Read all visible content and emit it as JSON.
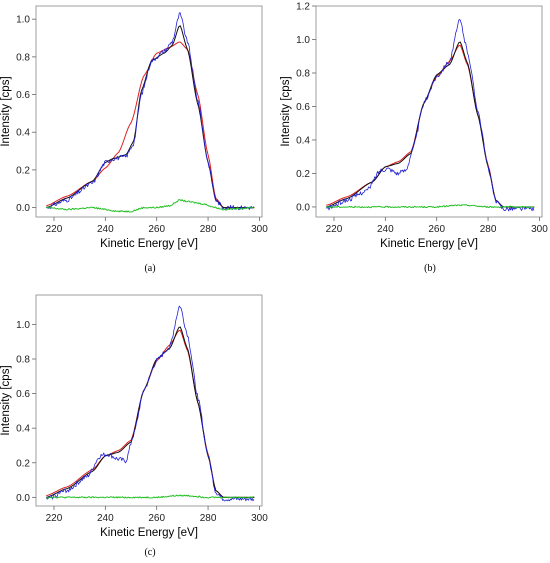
{
  "chart_data": [
    {
      "panel": "a",
      "type": "line",
      "caption": "(a)",
      "xlabel": "Kinetic Energy [eV]",
      "ylabel": "Intensity [cps]",
      "xlim": [
        213,
        301
      ],
      "ylim": [
        -0.05,
        1.07
      ],
      "xticks": [
        220,
        240,
        260,
        280,
        300
      ],
      "yticks": [
        0.0,
        0.2,
        0.4,
        0.6,
        0.8,
        1.0
      ],
      "grid": false,
      "series": [
        {
          "color": "#e02020",
          "noise": 0,
          "points": [
            [
              217,
              0.01
            ],
            [
              225,
              0.06
            ],
            [
              235,
              0.14
            ],
            [
              240,
              0.21
            ],
            [
              245,
              0.29
            ],
            [
              250,
              0.45
            ],
            [
              255,
              0.7
            ],
            [
              260,
              0.82
            ],
            [
              265,
              0.85
            ],
            [
              269,
              0.88
            ],
            [
              272,
              0.84
            ],
            [
              276,
              0.6
            ],
            [
              280,
              0.28
            ],
            [
              283,
              0.05
            ],
            [
              286,
              0.0
            ],
            [
              298,
              0.0
            ]
          ]
        },
        {
          "color": "#101010",
          "noise": 0,
          "points": [
            [
              217,
              0.0
            ],
            [
              225,
              0.05
            ],
            [
              235,
              0.14
            ],
            [
              240,
              0.24
            ],
            [
              243,
              0.26
            ],
            [
              248,
              0.28
            ],
            [
              251,
              0.35
            ],
            [
              254,
              0.62
            ],
            [
              258,
              0.78
            ],
            [
              263,
              0.82
            ],
            [
              266,
              0.86
            ],
            [
              269,
              0.97
            ],
            [
              272,
              0.84
            ],
            [
              276,
              0.55
            ],
            [
              280,
              0.24
            ],
            [
              283,
              0.04
            ],
            [
              286,
              0.0
            ],
            [
              298,
              0.0
            ]
          ]
        },
        {
          "color": "#1f1fd6",
          "noise": 0.012,
          "points": [
            [
              217,
              0.0
            ],
            [
              225,
              0.04
            ],
            [
              235,
              0.13
            ],
            [
              240,
              0.24
            ],
            [
              243,
              0.26
            ],
            [
              248,
              0.27
            ],
            [
              251,
              0.34
            ],
            [
              254,
              0.6
            ],
            [
              258,
              0.78
            ],
            [
              263,
              0.83
            ],
            [
              266,
              0.88
            ],
            [
              269,
              1.03
            ],
            [
              272,
              0.88
            ],
            [
              276,
              0.57
            ],
            [
              280,
              0.24
            ],
            [
              283,
              0.04
            ],
            [
              286,
              0.0
            ],
            [
              298,
              0.0
            ]
          ]
        },
        {
          "color": "#22c022",
          "noise": 0.004,
          "points": [
            [
              217,
              0.0
            ],
            [
              225,
              -0.01
            ],
            [
              235,
              0.0
            ],
            [
              240,
              -0.01
            ],
            [
              245,
              -0.02
            ],
            [
              250,
              -0.02
            ],
            [
              255,
              0.0
            ],
            [
              260,
              0.0
            ],
            [
              265,
              0.01
            ],
            [
              269,
              0.04
            ],
            [
              273,
              0.03
            ],
            [
              278,
              0.02
            ],
            [
              283,
              0.0
            ],
            [
              286,
              -0.01
            ],
            [
              298,
              0.0
            ]
          ]
        }
      ]
    },
    {
      "panel": "b",
      "type": "line",
      "caption": "(b)",
      "xlabel": "Kinetic Energy [eV]",
      "ylabel": "Intensity [cps]",
      "xlim": [
        213,
        301
      ],
      "ylim": [
        -0.06,
        1.2
      ],
      "xticks": [
        220,
        240,
        260,
        280,
        300
      ],
      "yticks": [
        0.0,
        0.2,
        0.4,
        0.6,
        0.8,
        1.0,
        1.2
      ],
      "grid": false,
      "series": [
        {
          "color": "#e02020",
          "noise": 0,
          "points": [
            [
              217,
              0.01
            ],
            [
              225,
              0.06
            ],
            [
              235,
              0.15
            ],
            [
              240,
              0.24
            ],
            [
              245,
              0.27
            ],
            [
              250,
              0.33
            ],
            [
              255,
              0.62
            ],
            [
              260,
              0.78
            ],
            [
              265,
              0.87
            ],
            [
              269,
              0.97
            ],
            [
              272,
              0.85
            ],
            [
              276,
              0.55
            ],
            [
              280,
              0.25
            ],
            [
              283,
              0.04
            ],
            [
              286,
              0.0
            ],
            [
              298,
              0.0
            ]
          ]
        },
        {
          "color": "#101010",
          "noise": 0,
          "points": [
            [
              217,
              0.0
            ],
            [
              225,
              0.05
            ],
            [
              235,
              0.15
            ],
            [
              240,
              0.24
            ],
            [
              245,
              0.26
            ],
            [
              250,
              0.32
            ],
            [
              255,
              0.62
            ],
            [
              260,
              0.79
            ],
            [
              265,
              0.85
            ],
            [
              269,
              0.99
            ],
            [
              272,
              0.86
            ],
            [
              276,
              0.55
            ],
            [
              280,
              0.24
            ],
            [
              283,
              0.04
            ],
            [
              286,
              0.0
            ],
            [
              298,
              0.0
            ]
          ]
        },
        {
          "color": "#1f1fd6",
          "noise": 0.014,
          "points": [
            [
              217,
              -0.01
            ],
            [
              225,
              0.04
            ],
            [
              233,
              0.1
            ],
            [
              238,
              0.22
            ],
            [
              241,
              0.23
            ],
            [
              245,
              0.2
            ],
            [
              248,
              0.22
            ],
            [
              251,
              0.36
            ],
            [
              255,
              0.62
            ],
            [
              260,
              0.78
            ],
            [
              265,
              0.87
            ],
            [
              269,
              1.12
            ],
            [
              272,
              0.93
            ],
            [
              276,
              0.58
            ],
            [
              280,
              0.24
            ],
            [
              283,
              0.03
            ],
            [
              286,
              -0.01
            ],
            [
              298,
              -0.01
            ]
          ]
        },
        {
          "color": "#22c022",
          "noise": 0.004,
          "points": [
            [
              217,
              0.0
            ],
            [
              230,
              0.0
            ],
            [
              245,
              0.0
            ],
            [
              260,
              0.0
            ],
            [
              268,
              0.01
            ],
            [
              272,
              0.01
            ],
            [
              280,
              0.0
            ],
            [
              290,
              0.0
            ],
            [
              298,
              0.0
            ]
          ]
        }
      ]
    },
    {
      "panel": "c",
      "type": "line",
      "caption": "(c)",
      "xlabel": "Kinetic Energy [eV]",
      "ylabel": "Intensity [cps]",
      "xlim": [
        213,
        301
      ],
      "ylim": [
        -0.05,
        1.17
      ],
      "xticks": [
        220,
        240,
        260,
        280,
        300
      ],
      "yticks": [
        0.0,
        0.2,
        0.4,
        0.6,
        0.8,
        1.0
      ],
      "grid": false,
      "series": [
        {
          "color": "#e02020",
          "noise": 0,
          "points": [
            [
              217,
              0.01
            ],
            [
              225,
              0.06
            ],
            [
              235,
              0.16
            ],
            [
              240,
              0.24
            ],
            [
              245,
              0.27
            ],
            [
              250,
              0.33
            ],
            [
              255,
              0.62
            ],
            [
              260,
              0.79
            ],
            [
              265,
              0.88
            ],
            [
              269,
              0.97
            ],
            [
              272,
              0.85
            ],
            [
              276,
              0.55
            ],
            [
              280,
              0.25
            ],
            [
              283,
              0.04
            ],
            [
              286,
              0.0
            ],
            [
              298,
              0.0
            ]
          ]
        },
        {
          "color": "#101010",
          "noise": 0,
          "points": [
            [
              217,
              0.0
            ],
            [
              225,
              0.05
            ],
            [
              235,
              0.15
            ],
            [
              240,
              0.24
            ],
            [
              245,
              0.26
            ],
            [
              250,
              0.32
            ],
            [
              255,
              0.62
            ],
            [
              260,
              0.8
            ],
            [
              265,
              0.86
            ],
            [
              269,
              0.99
            ],
            [
              272,
              0.86
            ],
            [
              276,
              0.55
            ],
            [
              280,
              0.24
            ],
            [
              283,
              0.04
            ],
            [
              286,
              0.0
            ],
            [
              298,
              0.0
            ]
          ]
        },
        {
          "color": "#1f1fd6",
          "noise": 0.014,
          "points": [
            [
              217,
              -0.01
            ],
            [
              225,
              0.04
            ],
            [
              233,
              0.12
            ],
            [
              238,
              0.24
            ],
            [
              241,
              0.25
            ],
            [
              245,
              0.22
            ],
            [
              248,
              0.21
            ],
            [
              251,
              0.36
            ],
            [
              255,
              0.62
            ],
            [
              260,
              0.79
            ],
            [
              265,
              0.87
            ],
            [
              269,
              1.11
            ],
            [
              272,
              0.94
            ],
            [
              276,
              0.58
            ],
            [
              280,
              0.24
            ],
            [
              283,
              0.03
            ],
            [
              286,
              -0.01
            ],
            [
              298,
              -0.01
            ]
          ]
        },
        {
          "color": "#22c022",
          "noise": 0.004,
          "points": [
            [
              217,
              0.0
            ],
            [
              230,
              0.0
            ],
            [
              245,
              0.0
            ],
            [
              260,
              0.0
            ],
            [
              268,
              0.01
            ],
            [
              272,
              0.01
            ],
            [
              280,
              0.0
            ],
            [
              290,
              0.0
            ],
            [
              298,
              0.0
            ]
          ]
        }
      ]
    }
  ]
}
